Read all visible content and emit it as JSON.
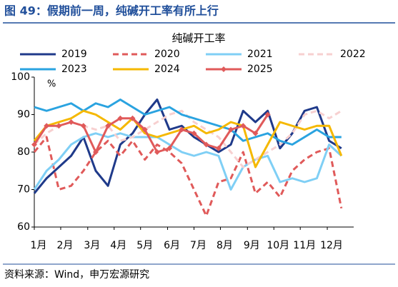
{
  "chart_data": {
    "type": "line",
    "title": "图 49：假期前一周，纯碱开工率有所上行",
    "subtitle": "纯碱开工率",
    "y_unit": "%",
    "source": "资料来源：Wind，申万宏源研究",
    "x": [
      0,
      2,
      4,
      6,
      8,
      10,
      12,
      14,
      16,
      18,
      20,
      22,
      24,
      26,
      28,
      30,
      32,
      34,
      36,
      38,
      40,
      42,
      44,
      46,
      48,
      50
    ],
    "xlim": [
      0,
      52
    ],
    "xticks": [
      {
        "value": 0,
        "label": "1月"
      },
      {
        "value": 4.3,
        "label": "2月"
      },
      {
        "value": 8.7,
        "label": "3月"
      },
      {
        "value": 13,
        "label": "4月"
      },
      {
        "value": 17.3,
        "label": "5月"
      },
      {
        "value": 21.7,
        "label": "6月"
      },
      {
        "value": 26,
        "label": "7月"
      },
      {
        "value": 30.3,
        "label": "8月"
      },
      {
        "value": 34.7,
        "label": "9月"
      },
      {
        "value": 39,
        "label": "10月"
      },
      {
        "value": 43.3,
        "label": "11月"
      },
      {
        "value": 47.7,
        "label": "12月"
      }
    ],
    "ylim": [
      60,
      100
    ],
    "yticks": [
      60,
      70,
      80,
      90,
      100
    ],
    "series": [
      {
        "name": "2019",
        "color": "#1f3a8a",
        "style": "solid",
        "values": [
          69,
          73,
          76,
          79,
          84,
          75,
          71,
          82,
          85,
          90,
          94,
          86,
          87,
          84,
          82,
          80,
          82,
          91,
          88,
          91,
          81,
          85,
          91,
          92,
          83,
          81
        ]
      },
      {
        "name": "2020",
        "color": "#e05a5a",
        "style": "dashed",
        "values": [
          80,
          84,
          70,
          71,
          75,
          80,
          83,
          79,
          83,
          78,
          82,
          80,
          77,
          70,
          63,
          72,
          73,
          80,
          69,
          72,
          68,
          75,
          78,
          80,
          81,
          65
        ]
      },
      {
        "name": "2021",
        "color": "#7fcff5",
        "style": "solid",
        "values": [
          70,
          75,
          78,
          82,
          84,
          85,
          84,
          85,
          84,
          84,
          84,
          82,
          80,
          79,
          80,
          79,
          70,
          76,
          78,
          79,
          72,
          73,
          72,
          73,
          82,
          79
        ]
      },
      {
        "name": "2022",
        "color": "#f7d0d0",
        "style": "dashed",
        "values": [
          82,
          85,
          87,
          88,
          87,
          86,
          87,
          83,
          84,
          86,
          88,
          90,
          91,
          88,
          86,
          84,
          80,
          76,
          78,
          80,
          82,
          85,
          90,
          91,
          89,
          91
        ]
      },
      {
        "name": "2023",
        "color": "#2aa3e0",
        "style": "solid",
        "values": [
          92,
          91,
          92,
          93,
          91,
          93,
          92,
          94,
          92,
          90,
          91,
          92,
          90,
          89,
          88,
          87,
          86,
          83,
          84,
          85,
          83,
          82,
          84,
          86,
          84,
          84
        ]
      },
      {
        "name": "2024",
        "color": "#f5b800",
        "style": "solid",
        "values": [
          83,
          87,
          88,
          89,
          91,
          90,
          88,
          86,
          89,
          85,
          84,
          85,
          86,
          87,
          85,
          86,
          88,
          87,
          76,
          82,
          88,
          87,
          86,
          87,
          87,
          79
        ]
      },
      {
        "name": "2025",
        "color": "#e05a5a",
        "style": "solid",
        "marker": "diamond",
        "values": [
          82,
          87,
          87,
          88,
          87,
          80,
          87,
          89,
          89,
          86,
          80,
          81,
          86,
          85,
          82,
          81,
          86,
          87,
          85,
          90,
          null,
          null,
          null,
          null,
          null,
          null
        ]
      }
    ]
  }
}
